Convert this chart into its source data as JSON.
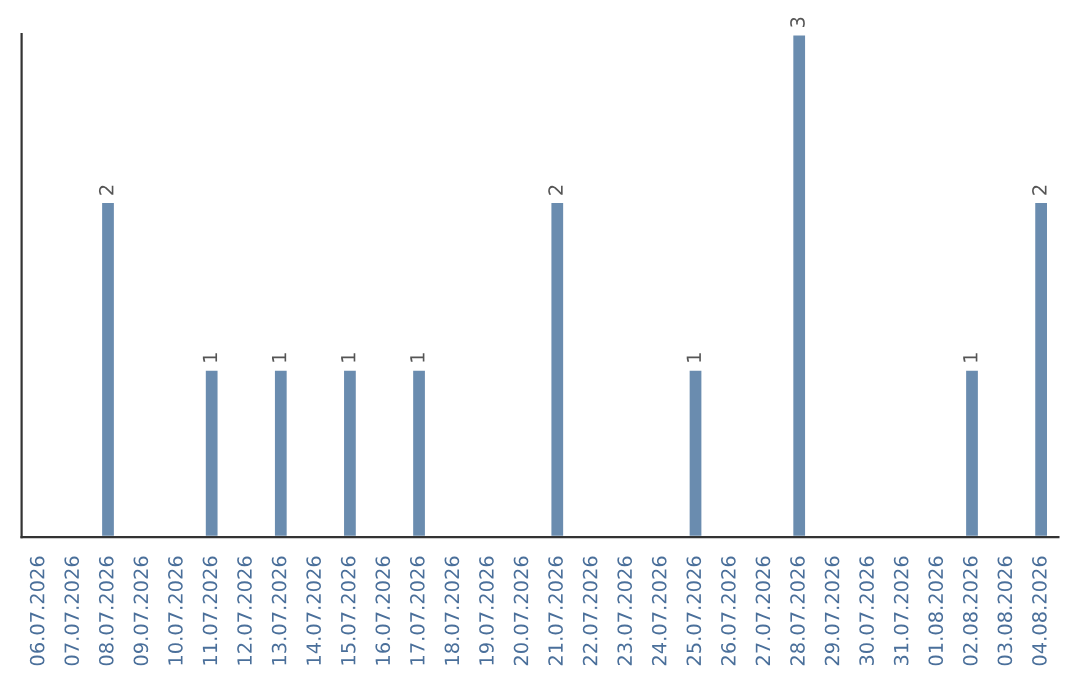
{
  "chart_data": {
    "type": "bar",
    "categories": [
      "06.07.2026",
      "07.07.2026",
      "08.07.2026",
      "09.07.2026",
      "10.07.2026",
      "11.07.2026",
      "12.07.2026",
      "13.07.2026",
      "14.07.2026",
      "15.07.2026",
      "16.07.2026",
      "17.07.2026",
      "18.07.2026",
      "19.07.2026",
      "20.07.2026",
      "21.07.2026",
      "22.07.2026",
      "23.07.2026",
      "24.07.2026",
      "25.07.2026",
      "26.07.2026",
      "27.07.2026",
      "28.07.2026",
      "29.07.2026",
      "30.07.2026",
      "31.07.2026",
      "01.08.2026",
      "02.08.2026",
      "03.08.2026",
      "04.08.2026"
    ],
    "values": [
      0,
      0,
      2,
      0,
      0,
      1,
      0,
      1,
      0,
      1,
      0,
      1,
      0,
      0,
      0,
      2,
      0,
      0,
      0,
      1,
      0,
      0,
      3,
      0,
      0,
      0,
      0,
      1,
      0,
      2
    ],
    "value_labels": [
      null,
      null,
      "2",
      null,
      null,
      "1",
      null,
      "1",
      null,
      "1",
      null,
      "1",
      null,
      null,
      null,
      "2",
      null,
      null,
      null,
      "1",
      null,
      null,
      "3",
      null,
      null,
      null,
      null,
      "1",
      null,
      "2"
    ],
    "color": "#6a8caf",
    "ylim": [
      0,
      3
    ],
    "tick_labels": "x",
    "grid": false,
    "legend": false
  }
}
